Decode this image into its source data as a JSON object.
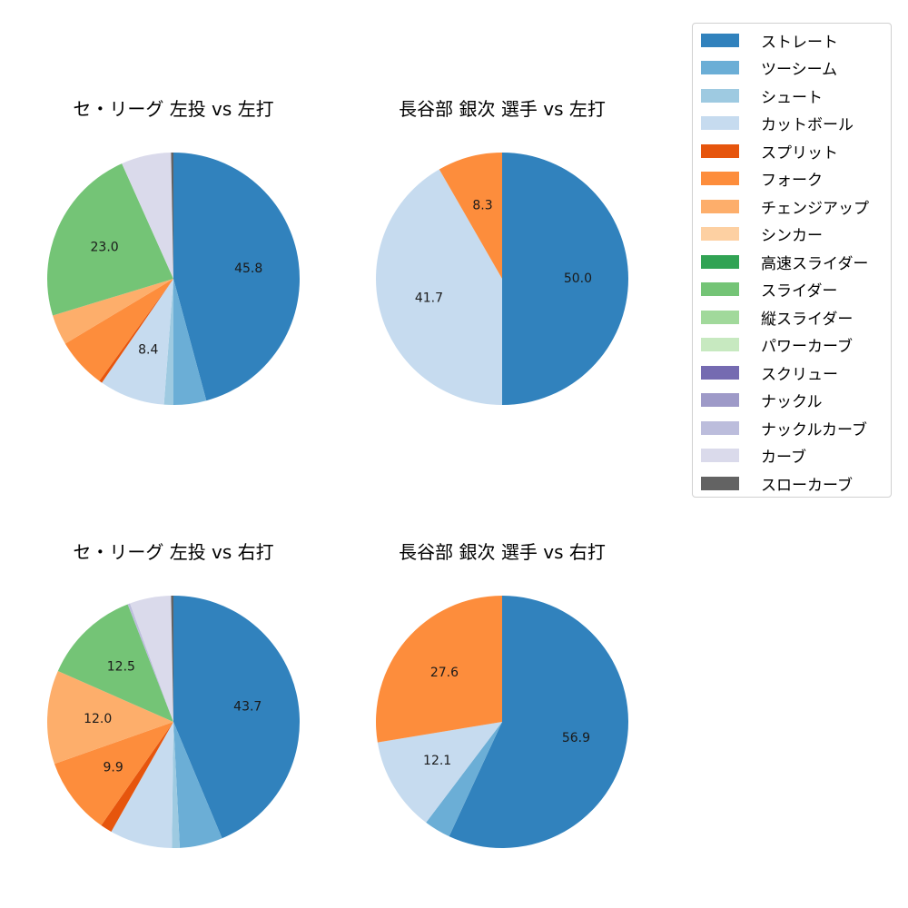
{
  "legend": {
    "items": [
      {
        "label": "ストレート",
        "color": "#3182bd"
      },
      {
        "label": "ツーシーム",
        "color": "#6baed6"
      },
      {
        "label": "シュート",
        "color": "#9ecae1"
      },
      {
        "label": "カットボール",
        "color": "#c6dbef"
      },
      {
        "label": "スプリット",
        "color": "#e6550d"
      },
      {
        "label": "フォーク",
        "color": "#fd8d3c"
      },
      {
        "label": "チェンジアップ",
        "color": "#fdae6b"
      },
      {
        "label": "シンカー",
        "color": "#fdd0a2"
      },
      {
        "label": "高速スライダー",
        "color": "#31a354"
      },
      {
        "label": "スライダー",
        "color": "#74c476"
      },
      {
        "label": "縦スライダー",
        "color": "#a1d99b"
      },
      {
        "label": "パワーカーブ",
        "color": "#c7e9c0"
      },
      {
        "label": "スクリュー",
        "color": "#756bb1"
      },
      {
        "label": "ナックル",
        "color": "#9e9ac8"
      },
      {
        "label": "ナックルカーブ",
        "color": "#bcbddc"
      },
      {
        "label": "カーブ",
        "color": "#dadaeb"
      },
      {
        "label": "スローカーブ",
        "color": "#636363"
      }
    ]
  },
  "charts": [
    {
      "title": "セ・リーグ 左投 vs 左打"
    },
    {
      "title": "長谷部 銀次 選手 vs 左打"
    },
    {
      "title": "セ・リーグ 左投 vs 右打"
    },
    {
      "title": "長谷部 銀次 選手 vs 右打"
    }
  ],
  "chart_data": [
    {
      "type": "pie",
      "title": "セ・リーグ 左投 vs 左打",
      "categories": [
        "ストレート",
        "ツーシーム",
        "シュート",
        "カットボール",
        "スプリット",
        "フォーク",
        "チェンジアップ",
        "スライダー",
        "カーブ",
        "スローカーブ"
      ],
      "values": [
        45.8,
        4.2,
        1.2,
        8.4,
        0.4,
        6.4,
        3.9,
        23.0,
        6.4,
        0.3
      ],
      "labels_shown": [
        "45.8",
        "8.4",
        "23.0"
      ]
    },
    {
      "type": "pie",
      "title": "長谷部 銀次 選手 vs 左打",
      "categories": [
        "ストレート",
        "カットボール",
        "フォーク"
      ],
      "values": [
        50.0,
        41.7,
        8.3
      ],
      "labels_shown": [
        "50.0",
        "41.7",
        "8.3"
      ]
    },
    {
      "type": "pie",
      "title": "セ・リーグ 左投 vs 右打",
      "categories": [
        "ストレート",
        "ツーシーム",
        "シュート",
        "カットボール",
        "スプリット",
        "フォーク",
        "チェンジアップ",
        "スライダー",
        "ナックルカーブ",
        "カーブ",
        "スローカーブ"
      ],
      "values": [
        43.7,
        5.5,
        1.0,
        8.0,
        1.5,
        9.9,
        12.0,
        12.5,
        0.3,
        5.3,
        0.3
      ],
      "labels_shown": [
        "43.7",
        "9.9",
        "12.0",
        "12.5"
      ]
    },
    {
      "type": "pie",
      "title": "長谷部 銀次 選手 vs 右打",
      "categories": [
        "ストレート",
        "ツーシーム",
        "カットボール",
        "フォーク"
      ],
      "values": [
        56.9,
        3.4,
        12.1,
        27.6
      ],
      "labels_shown": [
        "56.9",
        "12.1",
        "27.6"
      ]
    }
  ]
}
